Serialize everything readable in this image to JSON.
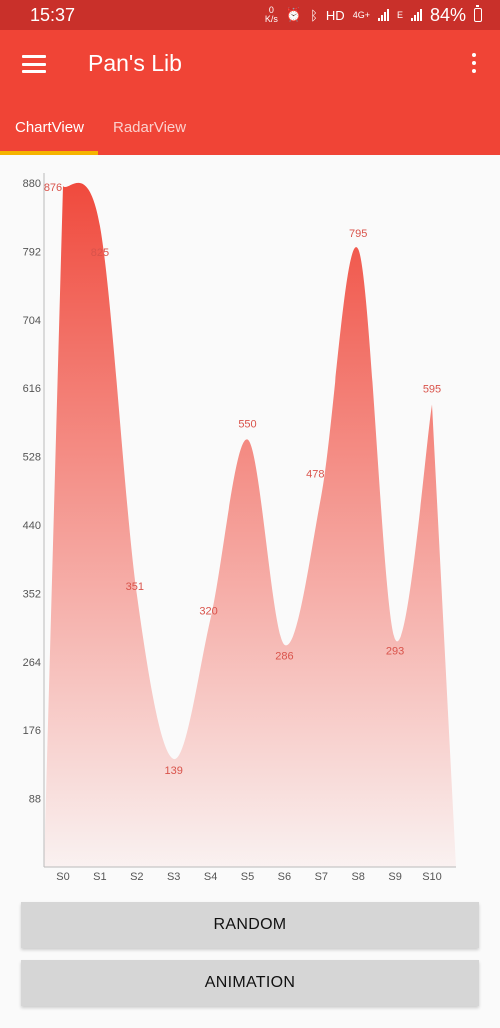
{
  "status": {
    "time": "15:37",
    "speed_value": "0",
    "speed_unit": "K/s",
    "hd": "HD",
    "net_4g": "4G+",
    "net_e": "E",
    "battery_pct": "84%"
  },
  "appbar": {
    "title": "Pan's Lib",
    "menu_icon": "hamburger-menu-icon",
    "more_icon": "more-vert-icon"
  },
  "tabs": [
    {
      "label": "ChartView",
      "selected": true
    },
    {
      "label": "RadarView",
      "selected": false
    }
  ],
  "colors": {
    "status_bar": "#c9302a",
    "app_bar": "#f04436",
    "tab_indicator": "#f5b400",
    "chart_fill": "#f0493c",
    "value_label": "#d9534b"
  },
  "chart_data": {
    "type": "area",
    "categories": [
      "S0",
      "S1",
      "S2",
      "S3",
      "S4",
      "S5",
      "S6",
      "S7",
      "S8",
      "S9",
      "S10"
    ],
    "values": [
      876,
      825,
      351,
      139,
      320,
      550,
      286,
      478,
      795,
      293,
      595
    ],
    "data_labels": [
      "876",
      "825",
      "351",
      "139",
      "320",
      "550",
      "286",
      "478",
      "795",
      "293",
      "595"
    ],
    "y_ticks": [
      "88",
      "176",
      "264",
      "352",
      "440",
      "528",
      "616",
      "704",
      "792",
      "880"
    ],
    "ylim": [
      0,
      880
    ],
    "grid": false,
    "smooth": true,
    "fill": "gradient"
  },
  "buttons": {
    "random": "RANDOM",
    "animation": "ANIMATION"
  }
}
